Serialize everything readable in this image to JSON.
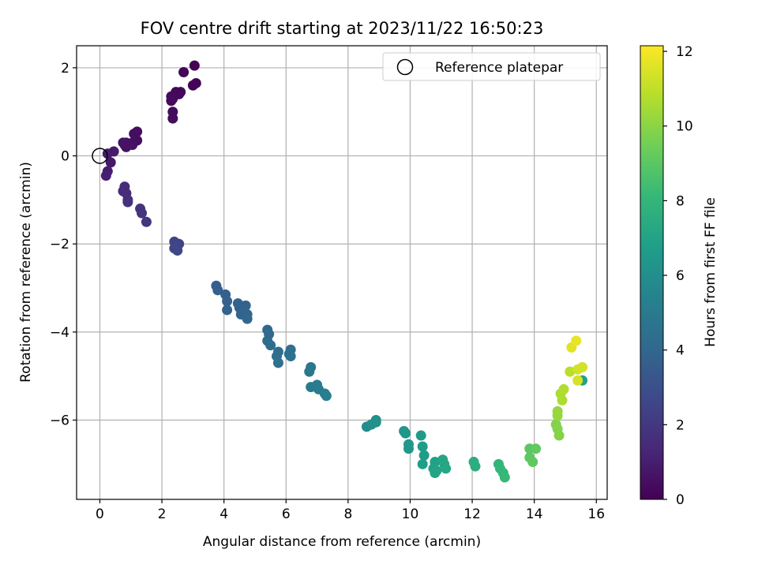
{
  "chart_data": {
    "type": "scatter",
    "title": "FOV centre drift starting at 2023/11/22 16:50:23",
    "xlabel": "Angular distance from reference (arcmin)",
    "ylabel": "Rotation from reference (arcmin)",
    "xlim": [
      -0.75,
      16.35
    ],
    "ylim": [
      -7.8,
      2.5
    ],
    "xticks": [
      0,
      2,
      4,
      6,
      8,
      10,
      12,
      14,
      16
    ],
    "yticks": [
      -6,
      -4,
      -2,
      0,
      2
    ],
    "grid": true,
    "legend": {
      "placement": "top-right",
      "entries": [
        "Reference platepar"
      ]
    },
    "reference_point": {
      "x": 0,
      "y": 0
    },
    "colorbar": {
      "label": "Hours from first FF file",
      "range": [
        0,
        12.15
      ],
      "ticks": [
        0,
        2,
        4,
        6,
        8,
        10,
        12
      ],
      "colormap": "viridis",
      "colors": [
        "#440154",
        "#482878",
        "#3e4989",
        "#31688e",
        "#26828e",
        "#1f9e89",
        "#35b779",
        "#6ece58",
        "#b5de2b",
        "#fde725"
      ]
    },
    "point_size_note": "",
    "series": [
      {
        "x": [
          0.35,
          0.45,
          0.25,
          0.2,
          0.25,
          0.75,
          0.8,
          0.85,
          0.85,
          1.1,
          1.05,
          1.2,
          1.05,
          1.2,
          0.8,
          0.75,
          0.85,
          0.9,
          0.9,
          1.3,
          1.35,
          1.5,
          2.3,
          2.35,
          2.55,
          2.6,
          2.35,
          2.35,
          2.3,
          2.45,
          2.7,
          3.05,
          3.0,
          3.1,
          2.4,
          2.45,
          2.5,
          2.55,
          2.4,
          3.75,
          3.8,
          4.05,
          4.1,
          4.1,
          4.45,
          4.5,
          4.55,
          4.7,
          4.75,
          4.75,
          5.4,
          5.45,
          5.4,
          5.5,
          5.75,
          5.7,
          5.75,
          6.15,
          6.1,
          6.15,
          6.8,
          6.75,
          6.8,
          7.0,
          7.05,
          7.25,
          7.3,
          8.6,
          8.75,
          8.9,
          8.9,
          9.8,
          9.85,
          9.95,
          9.95,
          10.35,
          10.4,
          10.45,
          10.4,
          10.8,
          10.75,
          10.85,
          10.8,
          11.05,
          11.1,
          11.15,
          12.05,
          12.1,
          12.85,
          12.9,
          13.0,
          13.05,
          13.85,
          13.85,
          13.95,
          14.05,
          14.7,
          14.75,
          14.8,
          14.75,
          14.75,
          14.85,
          14.9,
          14.95,
          15.15,
          15.2,
          15.35,
          15.4,
          15.55,
          15.55,
          15.4
        ],
        "y": [
          -0.15,
          0.1,
          -0.35,
          -0.45,
          0.05,
          0.3,
          0.25,
          0.3,
          0.2,
          0.5,
          0.3,
          0.55,
          0.25,
          0.35,
          -0.7,
          -0.8,
          -0.85,
          -1.0,
          -1.05,
          -1.2,
          -1.3,
          -1.5,
          1.35,
          1.3,
          1.4,
          1.45,
          1.0,
          0.85,
          1.25,
          1.45,
          1.9,
          2.05,
          1.6,
          1.65,
          -1.95,
          -2.05,
          -2.15,
          -2.0,
          -2.1,
          -2.95,
          -3.05,
          -3.15,
          -3.3,
          -3.5,
          -3.35,
          -3.45,
          -3.6,
          -3.4,
          -3.6,
          -3.7,
          -3.95,
          -4.05,
          -4.2,
          -4.3,
          -4.45,
          -4.55,
          -4.7,
          -4.4,
          -4.5,
          -4.55,
          -4.8,
          -4.9,
          -5.25,
          -5.2,
          -5.3,
          -5.4,
          -5.45,
          -6.15,
          -6.1,
          -6.0,
          -6.05,
          -6.25,
          -6.3,
          -6.55,
          -6.65,
          -6.35,
          -6.6,
          -6.8,
          -7.0,
          -6.95,
          -7.1,
          -7.15,
          -7.2,
          -6.9,
          -7.0,
          -7.1,
          -6.95,
          -7.05,
          -7.0,
          -7.1,
          -7.2,
          -7.3,
          -6.65,
          -6.85,
          -6.95,
          -6.65,
          -6.1,
          -6.2,
          -6.35,
          -5.8,
          -5.9,
          -5.4,
          -5.55,
          -5.3,
          -4.9,
          -4.35,
          -4.2,
          -4.85,
          -4.8,
          -5.1,
          -5.1
        ],
        "c": [
          0.8,
          0.9,
          1.0,
          1.05,
          0.85,
          0.6,
          0.65,
          0.7,
          0.6,
          0.5,
          0.55,
          0.45,
          0.6,
          0.5,
          1.5,
          1.55,
          1.6,
          1.65,
          1.7,
          1.8,
          1.85,
          1.9,
          0.35,
          0.35,
          0.3,
          0.25,
          0.35,
          0.4,
          0.3,
          0.25,
          0.15,
          0.05,
          0.1,
          0.1,
          2.5,
          2.55,
          2.6,
          2.5,
          2.6,
          3.6,
          3.65,
          3.7,
          3.75,
          3.8,
          3.8,
          3.85,
          3.9,
          3.85,
          3.9,
          3.95,
          4.1,
          4.15,
          4.2,
          4.25,
          4.35,
          4.4,
          4.45,
          4.45,
          4.5,
          4.55,
          4.85,
          4.9,
          5.0,
          5.05,
          5.1,
          5.15,
          5.2,
          5.9,
          6.0,
          6.05,
          6.1,
          6.3,
          6.35,
          6.45,
          6.5,
          6.6,
          6.65,
          6.7,
          6.75,
          6.9,
          6.95,
          7.0,
          7.05,
          7.1,
          7.15,
          7.2,
          7.55,
          7.6,
          8.0,
          8.05,
          8.1,
          8.15,
          9.0,
          9.05,
          9.1,
          9.15,
          9.8,
          9.85,
          9.9,
          10.2,
          10.25,
          10.6,
          10.65,
          10.7,
          10.9,
          11.6,
          11.75,
          11.3,
          11.35,
          6.9,
          11.4
        ]
      }
    ]
  }
}
